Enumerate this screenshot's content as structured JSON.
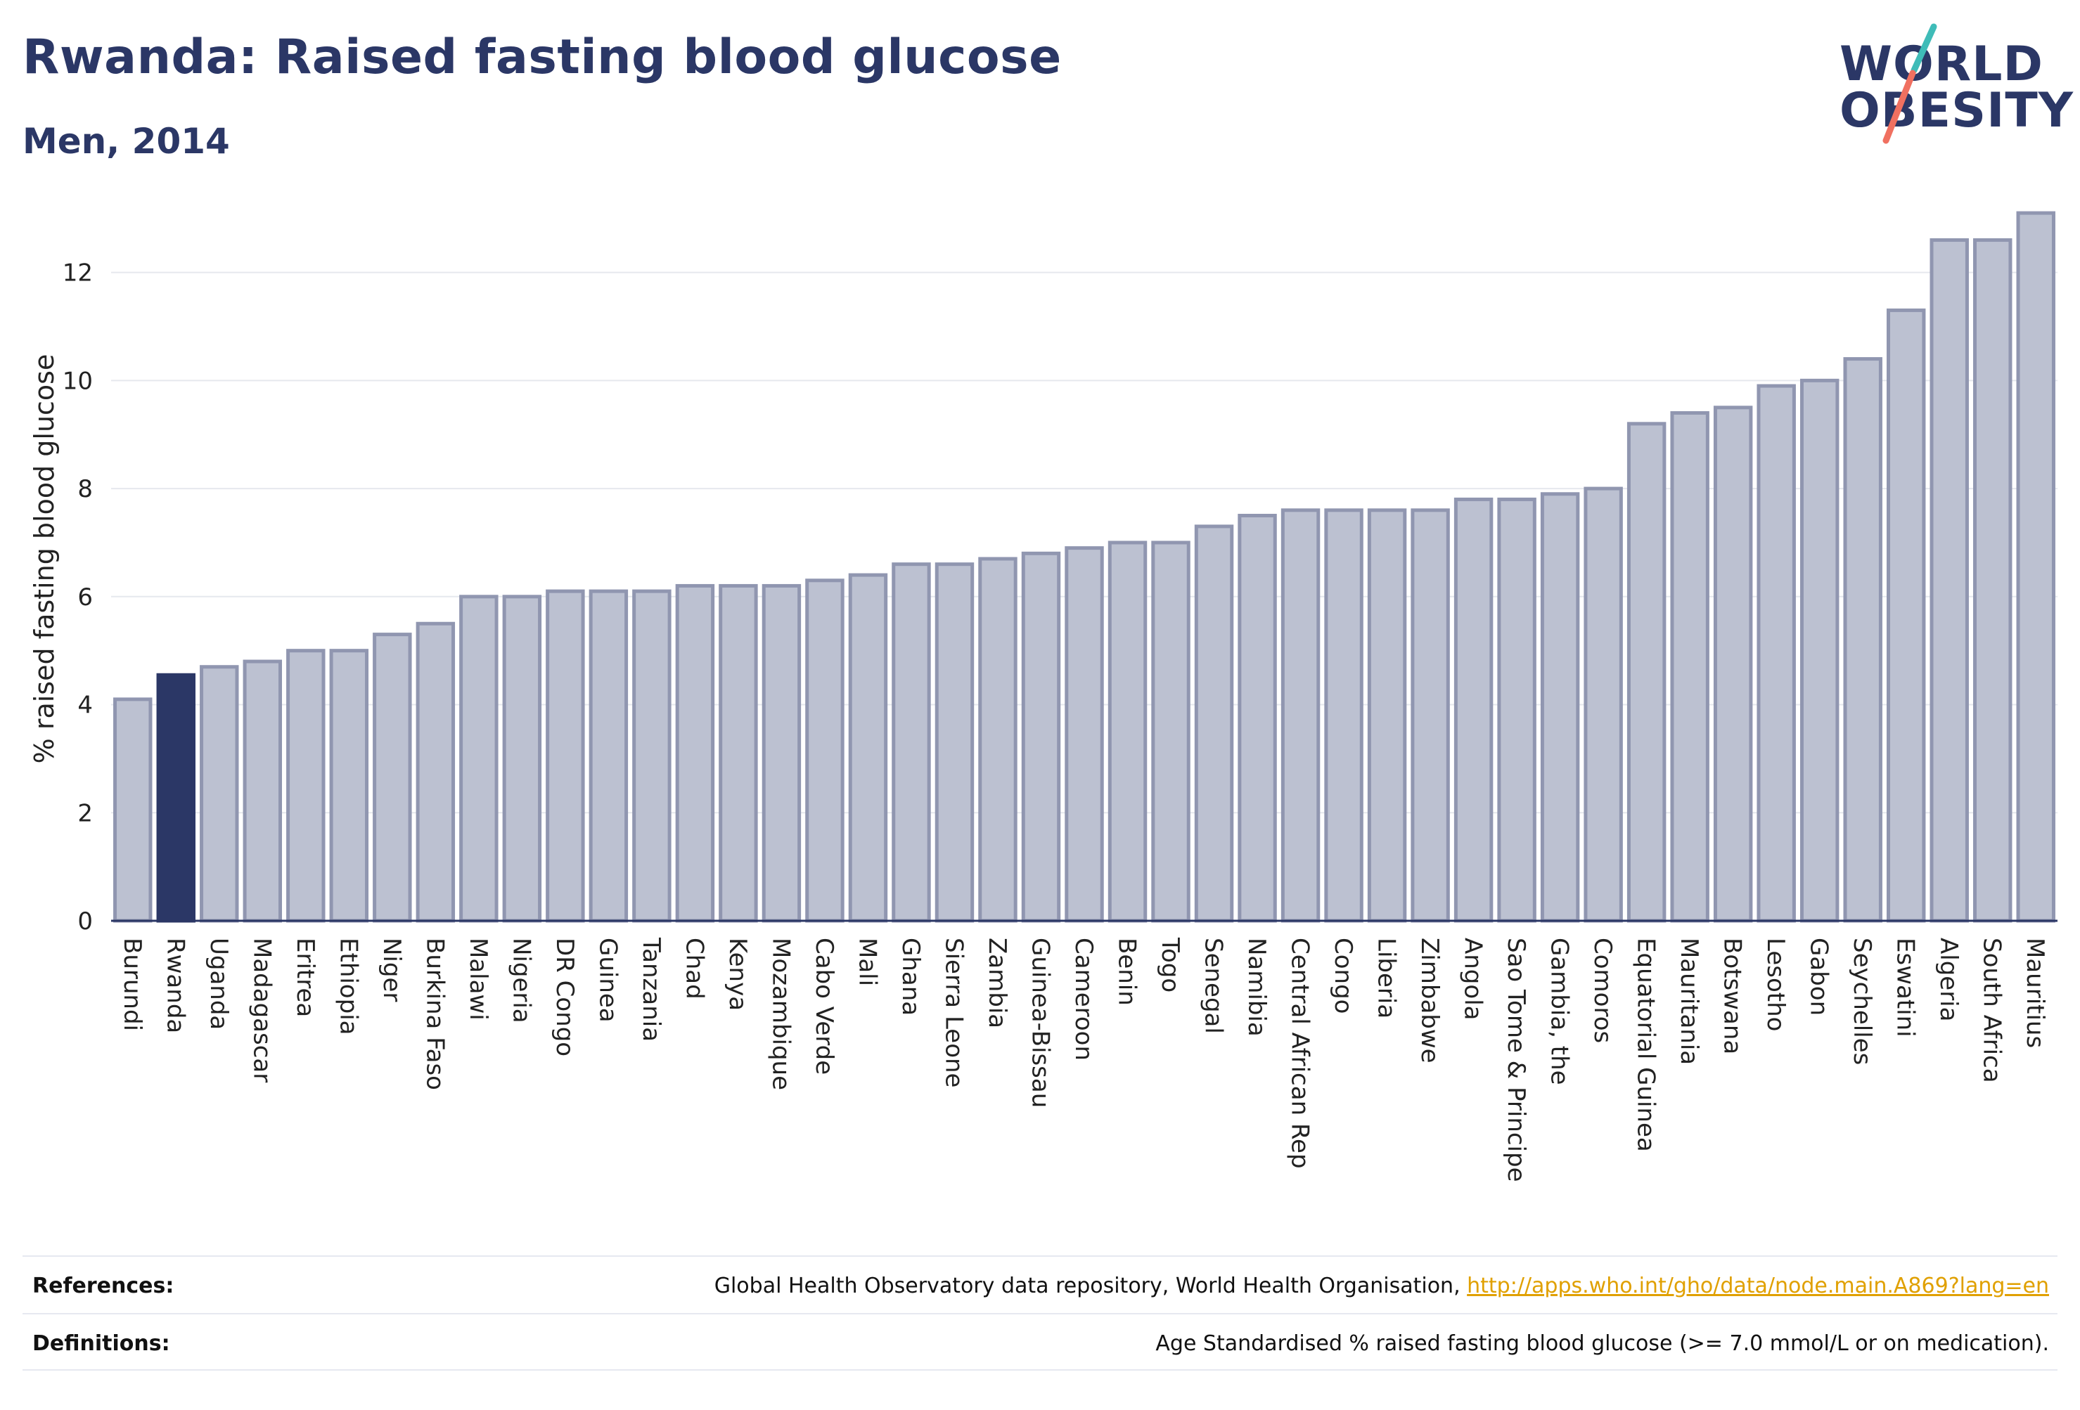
{
  "header": {
    "title": "Rwanda: Raised fasting blood glucose",
    "subtitle": "Men, 2014"
  },
  "logo": {
    "line1": "WORLD",
    "line2": "OBESITY",
    "slash_colors": [
      "#3fbcb8",
      "#f07060"
    ]
  },
  "colors": {
    "bar_fill": "#bcc1d1",
    "bar_stroke": "#9096b0",
    "highlight": "#2b3766",
    "axis_text": "#222222",
    "grid": "#e6e8ee"
  },
  "chart_data": {
    "type": "bar",
    "ylabel": "% raised fasting blood glucose",
    "ylim": [
      0,
      13.4
    ],
    "yticks": [
      0,
      2,
      4,
      6,
      8,
      10,
      12
    ],
    "grid": true,
    "highlight_category": "Rwanda",
    "categories": [
      "Burundi",
      "Rwanda",
      "Uganda",
      "Madagascar",
      "Eritrea",
      "Ethiopia",
      "Niger",
      "Burkina Faso",
      "Malawi",
      "Nigeria",
      "DR Congo",
      "Guinea",
      "Tanzania",
      "Chad",
      "Kenya",
      "Mozambique",
      "Cabo Verde",
      "Mali",
      "Ghana",
      "Sierra Leone",
      "Zambia",
      "Guinea-Bissau",
      "Cameroon",
      "Benin",
      "Togo",
      "Senegal",
      "Namibia",
      "Central African Rep",
      "Congo",
      "Liberia",
      "Zimbabwe",
      "Angola",
      "Sao Tome & Principe",
      "Gambia, the",
      "Comoros",
      "Equatorial Guinea",
      "Mauritania",
      "Botswana",
      "Lesotho",
      "Gabon",
      "Seychelles",
      "Eswatini",
      "Algeria",
      "South Africa",
      "Mauritius"
    ],
    "values": [
      4.1,
      4.55,
      4.7,
      4.8,
      5.0,
      5.0,
      5.3,
      5.5,
      6.0,
      6.0,
      6.1,
      6.1,
      6.1,
      6.2,
      6.2,
      6.2,
      6.3,
      6.4,
      6.6,
      6.6,
      6.7,
      6.8,
      6.9,
      7.0,
      7.0,
      7.3,
      7.5,
      7.6,
      7.6,
      7.6,
      7.6,
      7.8,
      7.8,
      7.9,
      8.0,
      9.2,
      9.4,
      9.5,
      9.9,
      10.0,
      10.4,
      11.3,
      12.6,
      12.6,
      13.1
    ]
  },
  "footer": {
    "references_label": "References:",
    "references_text": "Global Health Observatory data repository, World Health Organisation, ",
    "references_link": "http://apps.who.int/gho/data/node.main.A869?lang=en",
    "definitions_label": "Definitions:",
    "definitions_text": "Age Standardised % raised fasting blood glucose (>= 7.0 mmol/L or on medication)."
  }
}
